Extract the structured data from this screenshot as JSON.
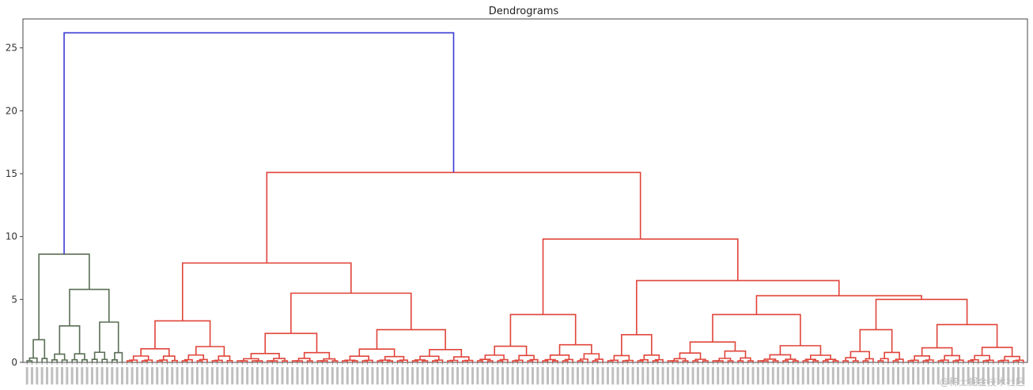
{
  "chart_data": {
    "type": "dendrogram",
    "title": "Dendrograms",
    "xlabel": "",
    "ylabel": "",
    "ylim": [
      0,
      27.3
    ],
    "yticks": [
      0,
      5,
      10,
      15,
      20,
      25
    ],
    "grid": false,
    "leaf_count_approx": 200,
    "colors": {
      "top_link": "#3b3bd4",
      "cluster_green": "#5a6e55",
      "cluster_red": "#e0443a",
      "axis": "#444444"
    },
    "clusters": [
      {
        "name": "green",
        "height": 8.6,
        "leaf_range": [
          0,
          19
        ],
        "children": [
          {
            "height": 1.8,
            "leaf_range": [
              0,
              4
            ]
          },
          {
            "height": 5.8,
            "leaf_range": [
              5,
              19
            ],
            "children": [
              {
                "height": 2.9,
                "leaf_range": [
                  5,
                  12
                ]
              },
              {
                "height": 3.2,
                "leaf_range": [
                  13,
                  19
                ]
              }
            ]
          }
        ]
      },
      {
        "name": "red",
        "height": 15.1,
        "leaf_range": [
          20,
          199
        ],
        "children": [
          {
            "height": 7.9,
            "leaf_range": [
              20,
              89
            ],
            "children": [
              {
                "height": 3.3,
                "leaf_range": [
                  20,
                  41
                ]
              },
              {
                "height": 5.5,
                "leaf_range": [
                  42,
                  89
                ],
                "children": [
                  {
                    "height": 2.3,
                    "leaf_range": [
                      42,
                      62
                    ]
                  },
                  {
                    "height": 2.6,
                    "leaf_range": [
                      63,
                      89
                    ]
                  }
                ]
              }
            ]
          },
          {
            "height": 9.8,
            "leaf_range": [
              90,
              199
            ],
            "children": [
              {
                "height": 3.8,
                "leaf_range": [
                  90,
                  115
                ]
              },
              {
                "height": 6.5,
                "leaf_range": [
                  116,
                  199
                ],
                "children": [
                  {
                    "height": 2.2,
                    "leaf_range": [
                      116,
                      127
                    ]
                  },
                  {
                    "height": 5.3,
                    "leaf_range": [
                      128,
                      199
                    ],
                    "children": [
                      {
                        "height": 3.8,
                        "leaf_range": [
                          128,
                          162
                        ]
                      },
                      {
                        "height": 5.0,
                        "leaf_range": [
                          163,
                          199
                        ],
                        "children": [
                          {
                            "height": 2.6,
                            "leaf_range": [
                              163,
                              175
                            ]
                          },
                          {
                            "height": 3.0,
                            "leaf_range": [
                              176,
                              199
                            ]
                          }
                        ]
                      }
                    ]
                  }
                ]
              }
            ]
          }
        ]
      }
    ],
    "root_height": 26.2,
    "watermark": "@稀土掘金技术社区"
  }
}
